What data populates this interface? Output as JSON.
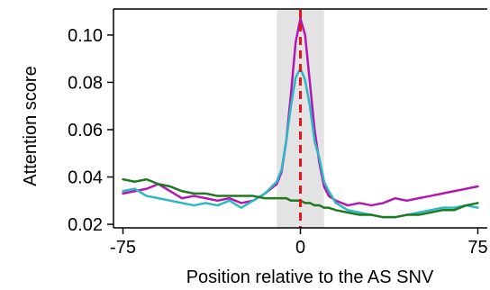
{
  "chart_data": {
    "type": "line",
    "title": "",
    "xlabel": "Position relative to the AS SNV",
    "ylabel": "Attention score",
    "xlim": [
      -79,
      79
    ],
    "ylim": [
      0.0185,
      0.111
    ],
    "xticks": [
      -75,
      0,
      75
    ],
    "xtick_labels": [
      "-75",
      "0",
      "75"
    ],
    "yticks": [
      0.02,
      0.04,
      0.06,
      0.08,
      0.1
    ],
    "ytick_labels": [
      "0.02",
      "0.04",
      "0.06",
      "0.08",
      "0.10"
    ],
    "grid": false,
    "legend": "none",
    "highlight_region": {
      "x": [
        -10,
        10
      ],
      "color": "#e3e3e3"
    },
    "reference_line": {
      "x": 0,
      "color": "#e8141a",
      "style": "dashed"
    },
    "x": [
      -75,
      -70,
      -65,
      -60,
      -55,
      -50,
      -45,
      -40,
      -35,
      -30,
      -25,
      -20,
      -15,
      -10,
      -8,
      -6,
      -4,
      -2,
      0,
      2,
      4,
      6,
      8,
      10,
      12,
      15,
      20,
      25,
      30,
      35,
      40,
      45,
      50,
      55,
      60,
      65,
      70,
      75
    ],
    "series": [
      {
        "color": "#b317b3",
        "values": [
          0.033,
          0.034,
          0.035,
          0.037,
          0.034,
          0.031,
          0.032,
          0.031,
          0.03,
          0.031,
          0.029,
          0.03,
          0.033,
          0.037,
          0.042,
          0.055,
          0.075,
          0.097,
          0.107,
          0.1,
          0.08,
          0.06,
          0.046,
          0.036,
          0.032,
          0.03,
          0.028,
          0.029,
          0.028,
          0.029,
          0.031,
          0.03,
          0.031,
          0.032,
          0.033,
          0.034,
          0.035,
          0.036
        ]
      },
      {
        "color": "#2ab8c4",
        "values": [
          0.034,
          0.035,
          0.032,
          0.031,
          0.03,
          0.029,
          0.028,
          0.029,
          0.028,
          0.03,
          0.027,
          0.03,
          0.033,
          0.038,
          0.043,
          0.055,
          0.07,
          0.082,
          0.086,
          0.081,
          0.07,
          0.055,
          0.048,
          0.038,
          0.034,
          0.029,
          0.026,
          0.025,
          0.024,
          0.023,
          0.023,
          0.024,
          0.025,
          0.026,
          0.027,
          0.027,
          0.028,
          0.027
        ]
      },
      {
        "color": "#1f7a1f",
        "values": [
          0.039,
          0.038,
          0.039,
          0.037,
          0.036,
          0.034,
          0.033,
          0.033,
          0.032,
          0.032,
          0.032,
          0.032,
          0.031,
          0.031,
          0.031,
          0.031,
          0.03,
          0.03,
          0.03,
          0.029,
          0.029,
          0.028,
          0.028,
          0.027,
          0.027,
          0.026,
          0.025,
          0.024,
          0.024,
          0.023,
          0.023,
          0.024,
          0.024,
          0.025,
          0.026,
          0.026,
          0.028,
          0.029
        ]
      }
    ]
  }
}
